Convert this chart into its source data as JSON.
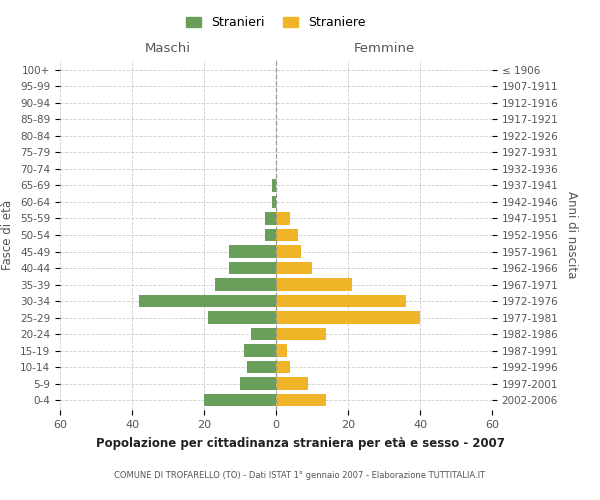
{
  "age_groups": [
    "0-4",
    "5-9",
    "10-14",
    "15-19",
    "20-24",
    "25-29",
    "30-34",
    "35-39",
    "40-44",
    "45-49",
    "50-54",
    "55-59",
    "60-64",
    "65-69",
    "70-74",
    "75-79",
    "80-84",
    "85-89",
    "90-94",
    "95-99",
    "100+"
  ],
  "birth_years": [
    "2002-2006",
    "1997-2001",
    "1992-1996",
    "1987-1991",
    "1982-1986",
    "1977-1981",
    "1972-1976",
    "1967-1971",
    "1962-1966",
    "1957-1961",
    "1952-1956",
    "1947-1951",
    "1942-1946",
    "1937-1941",
    "1932-1936",
    "1927-1931",
    "1922-1926",
    "1917-1921",
    "1912-1916",
    "1907-1911",
    "≤ 1906"
  ],
  "maschi": [
    20,
    10,
    8,
    9,
    7,
    19,
    38,
    17,
    13,
    13,
    3,
    3,
    1,
    1,
    0,
    0,
    0,
    0,
    0,
    0,
    0
  ],
  "femmine": [
    14,
    9,
    4,
    3,
    14,
    40,
    36,
    21,
    10,
    7,
    6,
    4,
    0,
    0,
    0,
    0,
    0,
    0,
    0,
    0,
    0
  ],
  "color_maschi": "#6a9f5b",
  "color_femmine": "#f0b429",
  "title": "Popolazione per cittadinanza straniera per età e sesso - 2007",
  "subtitle": "COMUNE DI TROFARELLO (TO) - Dati ISTAT 1° gennaio 2007 - Elaborazione TUTTITALIA.IT",
  "xlabel_left": "Maschi",
  "xlabel_right": "Femmine",
  "ylabel_left": "Fasce di età",
  "ylabel_right": "Anni di nascita",
  "xlim": 60,
  "legend_stranieri": "Stranieri",
  "legend_straniere": "Straniere",
  "background_color": "#ffffff",
  "grid_color": "#cccccc"
}
